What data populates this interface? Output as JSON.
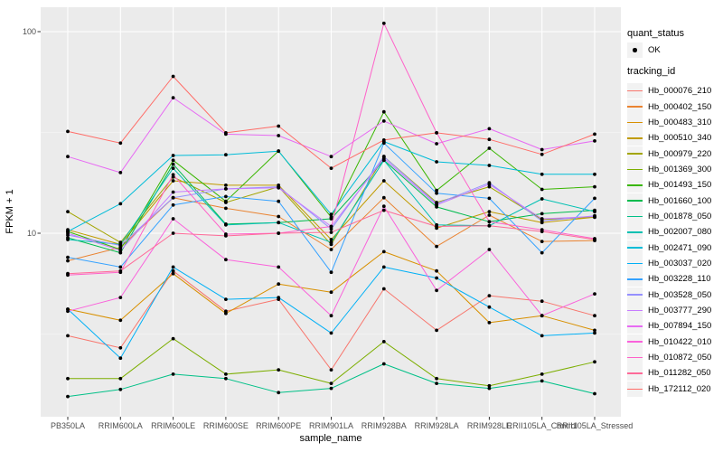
{
  "figure": {
    "background": "#FFFFFF",
    "panel_bg": "#EBEBEB",
    "grid_color": "#FFFFFF",
    "axis_text_color": "#4D4D4D",
    "tick_mark_color": "#333333",
    "point_color": "#000000"
  },
  "legend": {
    "quant_status": {
      "title": "quant_status",
      "items": [
        {
          "label": "OK",
          "marker": "black-point",
          "color": "#000000"
        }
      ]
    },
    "tracking_id": {
      "title": "tracking_id"
    }
  },
  "chart_data": {
    "type": "line",
    "title": "",
    "xlabel": "sample_name",
    "ylabel": "FPKM + 1",
    "y_scale": "log10",
    "y_ticks": [
      10,
      100
    ],
    "ylim": [
      1.23,
      132
    ],
    "grid": true,
    "legend_position": "right",
    "point_marker": "black dot at every observation (quant_status = OK)",
    "categories": [
      "PB350LA",
      "RRIM600LA",
      "RRIM600LE",
      "RRIM600SE",
      "RRIM600PE",
      "RRIM901LA",
      "RRIM928BA",
      "RRIM928LA",
      "RRIM928LE",
      "RRII105LA_Control",
      "RRII105LA_Stressed"
    ],
    "series": [
      {
        "name": "Hb_000076_210",
        "color": "#F8766D",
        "values": [
          3.1,
          2.7,
          6.5,
          4.1,
          4.7,
          2.1,
          5.3,
          3.3,
          4.9,
          4.6,
          3.9
        ]
      },
      {
        "name": "Hb_000402_150",
        "color": "#EA8331",
        "values": [
          7.3,
          8.5,
          15.0,
          13.3,
          12.1,
          8.3,
          15.0,
          8.6,
          12.3,
          9.1,
          9.2
        ]
      },
      {
        "name": "Hb_000483_310",
        "color": "#D89000",
        "values": [
          4.2,
          3.7,
          6.3,
          4.0,
          5.6,
          5.1,
          8.1,
          6.5,
          3.6,
          3.9,
          3.3
        ]
      },
      {
        "name": "Hb_000510_340",
        "color": "#C09B00",
        "values": [
          10.4,
          8.8,
          18.2,
          17.3,
          17.3,
          9.3,
          18.2,
          10.6,
          12.8,
          11.3,
          12.0
        ]
      },
      {
        "name": "Hb_000979_220",
        "color": "#A3A500",
        "values": [
          12.8,
          9.0,
          19.0,
          14.2,
          17.0,
          8.8,
          24.0,
          14.2,
          17.0,
          11.7,
          12.0
        ]
      },
      {
        "name": "Hb_001369_300",
        "color": "#7CAE00",
        "values": [
          1.9,
          1.9,
          3.0,
          2.0,
          2.1,
          1.8,
          2.9,
          1.9,
          1.75,
          2.0,
          2.3
        ]
      },
      {
        "name": "Hb_001493_150",
        "color": "#39B600",
        "values": [
          10.2,
          8.3,
          23.0,
          14.4,
          25.6,
          12.0,
          40.0,
          16.3,
          26.4,
          16.5,
          17.0
        ]
      },
      {
        "name": "Hb_001660_100",
        "color": "#00BB4E",
        "values": [
          9.5,
          8.0,
          22.0,
          11.1,
          11.3,
          11.8,
          23.0,
          13.5,
          11.4,
          12.5,
          13.0
        ]
      },
      {
        "name": "Hb_001878_050",
        "color": "#00C087",
        "values": [
          1.55,
          1.68,
          2.0,
          1.9,
          1.62,
          1.7,
          2.25,
          1.8,
          1.7,
          1.85,
          1.6
        ]
      },
      {
        "name": "Hb_002007_080",
        "color": "#00C0B2",
        "values": [
          9.3,
          8.8,
          21.0,
          11.0,
          11.3,
          9.0,
          23.0,
          11.0,
          10.9,
          14.8,
          12.8
        ]
      },
      {
        "name": "Hb_002471_090",
        "color": "#00BCD8",
        "values": [
          10.2,
          14.0,
          24.3,
          24.5,
          25.5,
          12.4,
          28.5,
          22.6,
          21.7,
          19.6,
          19.6
        ]
      },
      {
        "name": "Hb_003037_020",
        "color": "#00B0F6",
        "values": [
          4.2,
          2.4,
          6.8,
          4.7,
          4.8,
          3.2,
          6.8,
          6.0,
          4.3,
          3.1,
          3.2
        ]
      },
      {
        "name": "Hb_003228_110",
        "color": "#35A2FF",
        "values": [
          7.6,
          6.8,
          13.8,
          15.2,
          14.4,
          6.4,
          28.0,
          15.8,
          14.9,
          8.0,
          14.9
        ]
      },
      {
        "name": "Hb_003528_050",
        "color": "#9590FF",
        "values": [
          9.8,
          8.7,
          15.0,
          16.6,
          17.0,
          10.5,
          24.0,
          14.0,
          17.8,
          11.5,
          12.2
        ]
      },
      {
        "name": "Hb_003777_290",
        "color": "#C77CFF",
        "values": [
          10.0,
          8.2,
          16.0,
          16.6,
          16.8,
          10.8,
          23.5,
          13.8,
          17.5,
          11.8,
          12.1
        ]
      },
      {
        "name": "Hb_007894_150",
        "color": "#E76BF3",
        "values": [
          24.0,
          20.0,
          47.0,
          31.0,
          30.5,
          24.0,
          36.0,
          27.8,
          33.0,
          26.0,
          28.7
        ]
      },
      {
        "name": "Hb_010422_010",
        "color": "#FA62DB",
        "values": [
          4.1,
          4.8,
          11.8,
          7.4,
          6.8,
          3.9,
          13.6,
          5.2,
          8.3,
          3.9,
          5.0
        ]
      },
      {
        "name": "Hb_010872_050",
        "color": "#FF61C9",
        "values": [
          6.2,
          6.4,
          19.5,
          9.9,
          10.0,
          10.8,
          110.0,
          31.5,
          11.4,
          10.4,
          9.4
        ]
      },
      {
        "name": "Hb_011282_050",
        "color": "#FF6A98",
        "values": [
          6.3,
          6.5,
          10.0,
          9.7,
          10.0,
          10.1,
          13.0,
          10.8,
          10.9,
          10.2,
          9.3
        ]
      },
      {
        "name": "Hb_172112_020",
        "color": "#FF6C67",
        "values": [
          32.0,
          28.0,
          60.0,
          31.5,
          34.0,
          21.0,
          29.0,
          31.5,
          29.2,
          24.6,
          31.0
        ]
      }
    ]
  }
}
